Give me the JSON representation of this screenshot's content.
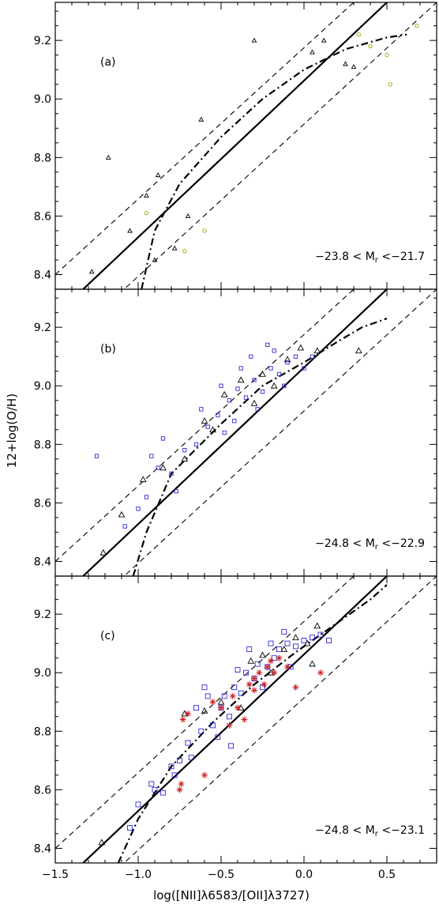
{
  "figure": {
    "ylabel": "12+log(O/H)",
    "xlabel": "log([NII]λ6583/[OII]λ3727)"
  },
  "colors": {
    "triangle": "#000000",
    "yellow_circle": "#a8a000",
    "blue_square": "#2b2bd6",
    "red_star": "#cc1f1f"
  },
  "chart_data": [
    {
      "type": "scatter",
      "panel_label": "(a)",
      "annotation": "−23.8 < M_r <−21.7",
      "xlim": [
        -1.5,
        0.8
      ],
      "ylim": [
        8.35,
        9.33
      ],
      "xticks": [
        -1.5,
        -1.0,
        -0.5,
        0.0,
        0.5
      ],
      "yticks": [
        8.4,
        8.6,
        8.8,
        9.0,
        9.2
      ],
      "lines": {
        "solid": [
          [
            -1.5,
            8.26
          ],
          [
            0.5,
            9.33
          ]
        ],
        "dashed_upper": [
          [
            -1.5,
            8.4
          ],
          [
            0.3,
            9.33
          ]
        ],
        "dashed_lower": [
          [
            -1.2,
            8.29
          ],
          [
            0.8,
            9.33
          ]
        ],
        "dashdot": [
          [
            -0.98,
            8.35
          ],
          [
            -0.9,
            8.55
          ],
          [
            -0.75,
            8.71
          ],
          [
            -0.5,
            8.87
          ],
          [
            -0.25,
            9.0
          ],
          [
            0.0,
            9.1
          ],
          [
            0.25,
            9.17
          ],
          [
            0.5,
            9.21
          ],
          [
            0.62,
            9.22
          ]
        ]
      },
      "series": [
        {
          "marker": "triangle",
          "points": [
            [
              -1.18,
              8.8
            ],
            [
              -0.95,
              8.67
            ],
            [
              -1.05,
              8.55
            ],
            [
              -0.78,
              8.49
            ],
            [
              -0.62,
              8.93
            ],
            [
              -0.3,
              9.2
            ],
            [
              0.05,
              9.16
            ],
            [
              0.25,
              9.12
            ],
            [
              0.3,
              9.11
            ],
            [
              -0.88,
              8.74
            ],
            [
              -0.7,
              8.6
            ],
            [
              -1.28,
              8.41
            ],
            [
              -0.9,
              8.45
            ],
            [
              0.12,
              9.2
            ]
          ]
        },
        {
          "marker": "yellow_circle",
          "points": [
            [
              0.33,
              9.22
            ],
            [
              0.4,
              9.18
            ],
            [
              0.5,
              9.15
            ],
            [
              0.52,
              9.05
            ],
            [
              0.68,
              9.25
            ],
            [
              -0.72,
              8.48
            ],
            [
              -0.6,
              8.55
            ],
            [
              -0.95,
              8.61
            ]
          ]
        }
      ]
    },
    {
      "type": "scatter",
      "panel_label": "(b)",
      "annotation": "−24.8 < M_r <−22.9",
      "xlim": [
        -1.5,
        0.8
      ],
      "ylim": [
        8.35,
        9.33
      ],
      "xticks": [
        -1.5,
        -1.0,
        -0.5,
        0.0,
        0.5
      ],
      "yticks": [
        8.4,
        8.6,
        8.8,
        9.0,
        9.2
      ],
      "lines": {
        "solid": [
          [
            -1.5,
            8.26
          ],
          [
            0.5,
            9.33
          ]
        ],
        "dashed_upper": [
          [
            -1.5,
            8.4
          ],
          [
            0.3,
            9.33
          ]
        ],
        "dashed_lower": [
          [
            -1.2,
            8.29
          ],
          [
            0.8,
            9.33
          ]
        ],
        "dashdot": [
          [
            -1.03,
            8.35
          ],
          [
            -0.95,
            8.5
          ],
          [
            -0.8,
            8.7
          ],
          [
            -0.5,
            8.87
          ],
          [
            -0.25,
            9.0
          ],
          [
            0.0,
            9.08
          ],
          [
            0.2,
            9.15
          ],
          [
            0.35,
            9.2
          ],
          [
            0.5,
            9.23
          ]
        ]
      },
      "series": [
        {
          "marker": "triangle",
          "points": [
            [
              -1.21,
              8.43
            ],
            [
              -1.1,
              8.56
            ],
            [
              -0.97,
              8.68
            ],
            [
              -0.85,
              8.72
            ],
            [
              -0.72,
              8.75
            ],
            [
              -0.6,
              8.88
            ],
            [
              -0.48,
              8.97
            ],
            [
              -0.38,
              9.02
            ],
            [
              -0.25,
              9.04
            ],
            [
              -0.1,
              9.09
            ],
            [
              -0.02,
              9.13
            ],
            [
              0.08,
              9.12
            ],
            [
              0.33,
              9.12
            ],
            [
              -0.3,
              8.94
            ],
            [
              -0.18,
              9.0
            ],
            [
              -0.55,
              8.85
            ]
          ]
        },
        {
          "marker": "blue_square",
          "points": [
            [
              -1.08,
              8.52
            ],
            [
              -1.0,
              8.58
            ],
            [
              -0.95,
              8.62
            ],
            [
              -0.88,
              8.72
            ],
            [
              -0.85,
              8.82
            ],
            [
              -0.77,
              8.64
            ],
            [
              -0.72,
              8.78
            ],
            [
              -0.65,
              8.8
            ],
            [
              -0.58,
              8.86
            ],
            [
              -0.52,
              8.9
            ],
            [
              -0.45,
              8.95
            ],
            [
              -0.4,
              8.99
            ],
            [
              -0.35,
              8.96
            ],
            [
              -0.3,
              9.02
            ],
            [
              -0.25,
              8.98
            ],
            [
              -0.2,
              9.06
            ],
            [
              -0.15,
              9.04
            ],
            [
              -0.1,
              9.08
            ],
            [
              -0.05,
              9.1
            ],
            [
              0.0,
              9.06
            ],
            [
              0.05,
              9.1
            ],
            [
              -0.42,
              8.88
            ],
            [
              -0.5,
              9.0
            ],
            [
              -0.62,
              8.92
            ],
            [
              -0.32,
              9.1
            ],
            [
              -0.18,
              9.12
            ],
            [
              -0.28,
              8.92
            ],
            [
              -0.12,
              9.0
            ],
            [
              -1.25,
              8.76
            ],
            [
              -0.92,
              8.76
            ],
            [
              -0.8,
              8.7
            ],
            [
              -0.38,
              9.06
            ],
            [
              -0.48,
              8.84
            ],
            [
              -0.22,
              9.14
            ]
          ]
        }
      ]
    },
    {
      "type": "scatter",
      "panel_label": "(c)",
      "annotation": "−24.8 < M_r <−23.1",
      "xlim": [
        -1.5,
        0.8
      ],
      "ylim": [
        8.35,
        9.33
      ],
      "xticks": [
        -1.5,
        -1.0,
        -0.5,
        0.0,
        0.5
      ],
      "xticklabels": [
        "−1.5",
        "−1.0",
        "−0.5",
        "0.0",
        "0.5"
      ],
      "yticks": [
        8.4,
        8.6,
        8.8,
        9.0,
        9.2
      ],
      "lines": {
        "solid": [
          [
            -1.5,
            8.26
          ],
          [
            0.5,
            9.33
          ]
        ],
        "dashed_upper": [
          [
            -1.5,
            8.4
          ],
          [
            0.3,
            9.33
          ]
        ],
        "dashed_lower": [
          [
            -1.2,
            8.29
          ],
          [
            0.8,
            9.33
          ]
        ],
        "dashdot": [
          [
            -1.12,
            8.35
          ],
          [
            -1.0,
            8.5
          ],
          [
            -0.8,
            8.68
          ],
          [
            -0.55,
            8.83
          ],
          [
            -0.3,
            8.96
          ],
          [
            -0.05,
            9.07
          ],
          [
            0.2,
            9.17
          ],
          [
            0.4,
            9.25
          ],
          [
            0.5,
            9.3
          ]
        ]
      },
      "series": [
        {
          "marker": "triangle",
          "points": [
            [
              -1.22,
              8.42
            ],
            [
              -0.72,
              8.86
            ],
            [
              -0.6,
              8.87
            ],
            [
              -0.5,
              8.9
            ],
            [
              -0.38,
              8.88
            ],
            [
              -0.32,
              9.04
            ],
            [
              -0.25,
              9.06
            ],
            [
              -0.12,
              9.08
            ],
            [
              -0.05,
              9.12
            ],
            [
              0.02,
              9.1
            ],
            [
              0.08,
              9.16
            ],
            [
              -0.2,
              9.0
            ],
            [
              0.05,
              9.03
            ]
          ]
        },
        {
          "marker": "blue_square",
          "points": [
            [
              -1.05,
              8.47
            ],
            [
              -1.0,
              8.55
            ],
            [
              -0.92,
              8.62
            ],
            [
              -0.85,
              8.59
            ],
            [
              -0.8,
              8.68
            ],
            [
              -0.75,
              8.7
            ],
            [
              -0.7,
              8.76
            ],
            [
              -0.68,
              8.71
            ],
            [
              -0.62,
              8.8
            ],
            [
              -0.55,
              8.82
            ],
            [
              -0.5,
              8.88
            ],
            [
              -0.48,
              8.92
            ],
            [
              -0.42,
              8.95
            ],
            [
              -0.38,
              8.93
            ],
            [
              -0.35,
              9.0
            ],
            [
              -0.3,
              8.98
            ],
            [
              -0.28,
              9.03
            ],
            [
              -0.22,
              9.02
            ],
            [
              -0.18,
              9.05
            ],
            [
              -0.15,
              9.08
            ],
            [
              -0.1,
              9.1
            ],
            [
              -0.05,
              9.09
            ],
            [
              0.0,
              9.11
            ],
            [
              0.05,
              9.12
            ],
            [
              0.1,
              9.13
            ],
            [
              0.15,
              9.11
            ],
            [
              -0.45,
              8.85
            ],
            [
              -0.58,
              8.92
            ],
            [
              -0.25,
              8.95
            ],
            [
              -0.33,
              9.08
            ],
            [
              -0.12,
              9.14
            ],
            [
              -0.65,
              8.88
            ],
            [
              -0.9,
              8.6
            ],
            [
              -0.78,
              8.65
            ],
            [
              -0.6,
              8.95
            ],
            [
              -0.4,
              9.01
            ],
            [
              -0.2,
              9.1
            ],
            [
              -0.08,
              9.02
            ],
            [
              -0.52,
              8.78
            ],
            [
              -0.44,
              8.75
            ]
          ]
        },
        {
          "marker": "red_star",
          "points": [
            [
              -0.75,
              8.6
            ],
            [
              -0.74,
              8.62
            ],
            [
              -0.73,
              8.84
            ],
            [
              -0.7,
              8.86
            ],
            [
              -0.55,
              8.9
            ],
            [
              -0.5,
              8.88
            ],
            [
              -0.43,
              8.92
            ],
            [
              -0.4,
              8.88
            ],
            [
              -0.36,
              8.84
            ],
            [
              -0.33,
              8.96
            ],
            [
              -0.3,
              8.98
            ],
            [
              -0.27,
              9.0
            ],
            [
              -0.24,
              8.96
            ],
            [
              -0.22,
              9.02
            ],
            [
              -0.2,
              9.04
            ],
            [
              -0.18,
              9.0
            ],
            [
              -0.15,
              9.05
            ],
            [
              -0.1,
              9.02
            ],
            [
              -0.05,
              8.95
            ],
            [
              0.1,
              9.0
            ],
            [
              -0.6,
              8.65
            ],
            [
              -0.45,
              8.82
            ],
            [
              -0.3,
              8.94
            ]
          ]
        }
      ]
    }
  ]
}
